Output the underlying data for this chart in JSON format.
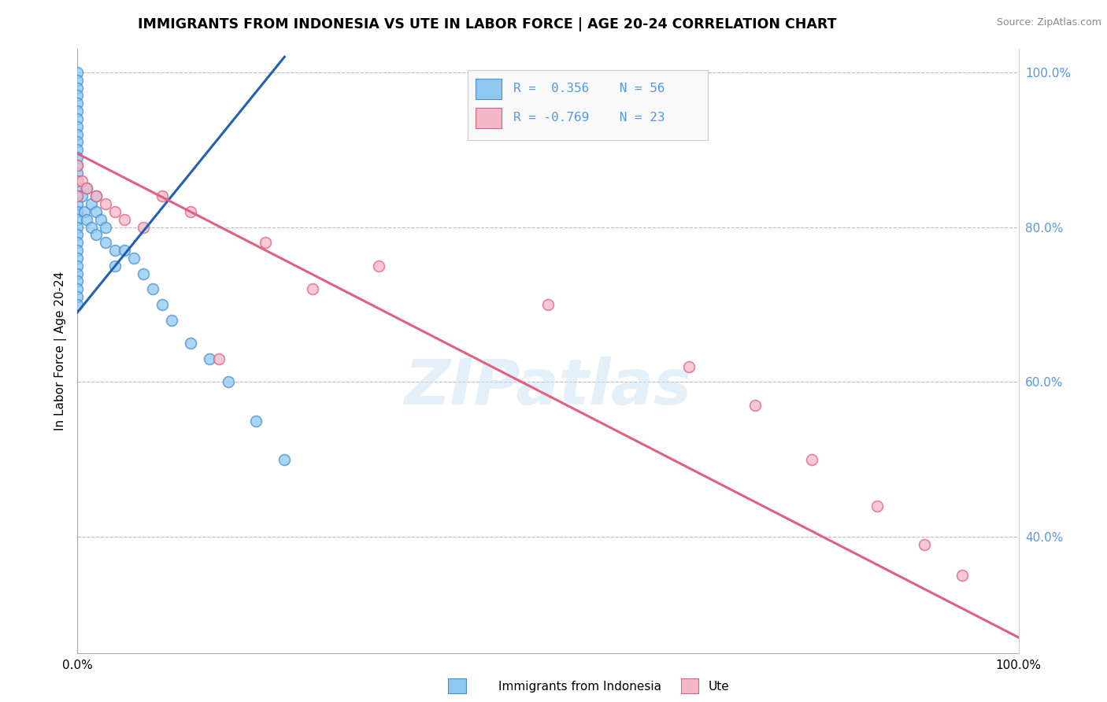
{
  "title": "IMMIGRANTS FROM INDONESIA VS UTE IN LABOR FORCE | AGE 20-24 CORRELATION CHART",
  "source_text": "Source: ZipAtlas.com",
  "ylabel": "In Labor Force | Age 20-24",
  "xlim": [
    0.0,
    1.0
  ],
  "ylim": [
    0.25,
    1.03
  ],
  "ytick_positions": [
    0.4,
    0.6,
    0.8,
    1.0
  ],
  "ytick_labels": [
    "40.0%",
    "60.0%",
    "80.0%",
    "100.0%"
  ],
  "watermark_text": "ZIPatlas",
  "blue_color": "#8ec8f0",
  "blue_edge_color": "#4a90d0",
  "pink_color": "#f5b8c8",
  "pink_edge_color": "#e06080",
  "blue_line_color": "#2060b0",
  "pink_line_color": "#e06080",
  "grid_color": "#bbbbbb",
  "background_color": "#ffffff",
  "tick_color": "#5599dd",
  "title_fontsize": 12.5,
  "tick_fontsize": 11,
  "ylabel_fontsize": 11,
  "marker_size": 100,
  "indo_x": [
    0.0,
    0.0,
    0.0,
    0.0,
    0.0,
    0.0,
    0.0,
    0.0,
    0.0,
    0.0,
    0.0,
    0.0,
    0.0,
    0.0,
    0.0,
    0.0,
    0.0,
    0.0,
    0.0,
    0.0,
    0.0,
    0.0,
    0.0,
    0.0,
    0.0,
    0.0,
    0.0,
    0.0,
    0.0,
    0.0,
    0.0,
    0.005,
    0.007,
    0.01,
    0.01,
    0.015,
    0.015,
    0.02,
    0.02,
    0.02,
    0.025,
    0.03,
    0.03,
    0.04,
    0.04,
    0.05,
    0.06,
    0.07,
    0.08,
    0.09,
    0.1,
    0.12,
    0.14,
    0.16,
    0.19,
    0.22
  ],
  "indo_y": [
    1.0,
    0.99,
    0.98,
    0.97,
    0.96,
    0.95,
    0.94,
    0.93,
    0.92,
    0.91,
    0.9,
    0.89,
    0.88,
    0.87,
    0.86,
    0.85,
    0.84,
    0.83,
    0.82,
    0.81,
    0.8,
    0.79,
    0.78,
    0.77,
    0.76,
    0.75,
    0.74,
    0.73,
    0.72,
    0.71,
    0.7,
    0.84,
    0.82,
    0.85,
    0.81,
    0.83,
    0.8,
    0.84,
    0.82,
    0.79,
    0.81,
    0.8,
    0.78,
    0.77,
    0.75,
    0.77,
    0.76,
    0.74,
    0.72,
    0.7,
    0.68,
    0.65,
    0.63,
    0.6,
    0.55,
    0.5
  ],
  "ute_x": [
    0.0,
    0.0,
    0.0,
    0.005,
    0.01,
    0.02,
    0.03,
    0.04,
    0.05,
    0.07,
    0.09,
    0.12,
    0.15,
    0.2,
    0.25,
    0.32,
    0.5,
    0.65,
    0.72,
    0.78,
    0.85,
    0.9,
    0.94
  ],
  "ute_y": [
    0.88,
    0.86,
    0.84,
    0.86,
    0.85,
    0.84,
    0.83,
    0.82,
    0.81,
    0.8,
    0.84,
    0.82,
    0.63,
    0.78,
    0.72,
    0.75,
    0.7,
    0.62,
    0.57,
    0.5,
    0.44,
    0.39,
    0.35
  ],
  "blue_trend_x": [
    0.0,
    0.22
  ],
  "blue_trend_y": [
    0.69,
    1.02
  ],
  "pink_trend_x": [
    0.0,
    1.0
  ],
  "pink_trend_y": [
    0.895,
    0.27
  ]
}
